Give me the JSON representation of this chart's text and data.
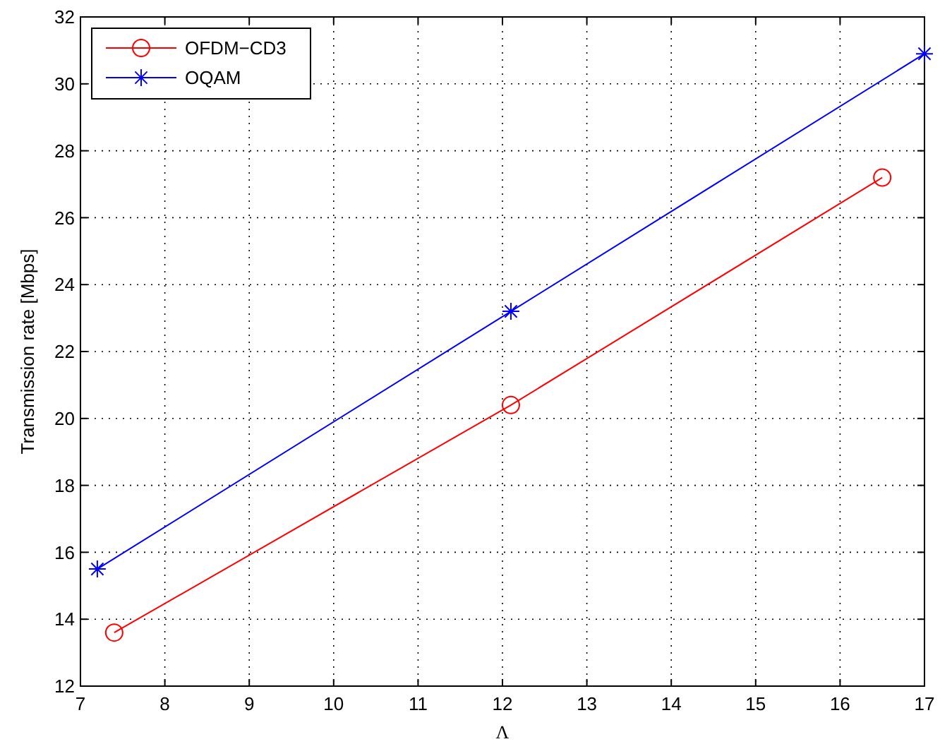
{
  "chart_data": {
    "type": "line",
    "xlabel": "Λ",
    "ylabel": "Transmission rate [Mbps]",
    "xlim": [
      7,
      17
    ],
    "xticks": [
      7,
      8,
      9,
      10,
      11,
      12,
      13,
      14,
      15,
      16,
      17
    ],
    "ylim": [
      12,
      32
    ],
    "yticks": [
      12,
      14,
      16,
      18,
      20,
      22,
      24,
      26,
      28,
      30,
      32
    ],
    "grid": true,
    "legend": "top left",
    "line_style": "solid",
    "series": [
      {
        "name": "OFDM−CD3",
        "color": "#ff0000",
        "marker": "circle",
        "x": [
          7.4,
          12.1,
          16.5
        ],
        "values": [
          13.6,
          20.4,
          27.2
        ]
      },
      {
        "name": "OQAM",
        "color": "#0000ff",
        "marker": "cross",
        "x": [
          7.2,
          12.1,
          17
        ],
        "values": [
          15.5,
          23.2,
          30.9
        ]
      }
    ]
  }
}
